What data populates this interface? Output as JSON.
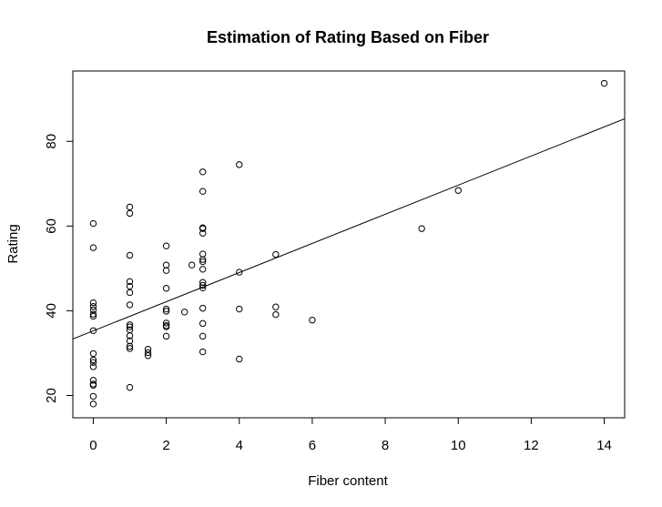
{
  "chart_data": {
    "type": "scatter",
    "title": "Estimation of Rating Based on Fiber",
    "xlabel": "Fiber content",
    "ylabel": "Rating",
    "xlim": [
      -0.56,
      14.56
    ],
    "ylim": [
      14.73,
      96.61
    ],
    "x_ticks": [
      0,
      2,
      4,
      6,
      8,
      10,
      12,
      14
    ],
    "y_ticks": [
      20,
      40,
      60,
      80
    ],
    "grid": false,
    "legend": "none",
    "regression_line": {
      "intercept": 35.26,
      "slope": 3.44
    },
    "points": [
      {
        "x": 0,
        "y": 60.6
      },
      {
        "x": 0,
        "y": 54.9
      },
      {
        "x": 0,
        "y": 41.9
      },
      {
        "x": 0,
        "y": 41.0
      },
      {
        "x": 0,
        "y": 40.2
      },
      {
        "x": 0,
        "y": 39.2
      },
      {
        "x": 0,
        "y": 38.7
      },
      {
        "x": 0,
        "y": 35.3
      },
      {
        "x": 0,
        "y": 29.9
      },
      {
        "x": 0,
        "y": 28.4
      },
      {
        "x": 0,
        "y": 27.8
      },
      {
        "x": 0,
        "y": 26.8
      },
      {
        "x": 0,
        "y": 23.6
      },
      {
        "x": 0,
        "y": 22.7
      },
      {
        "x": 0,
        "y": 22.4
      },
      {
        "x": 0,
        "y": 19.8
      },
      {
        "x": 0,
        "y": 18.0
      },
      {
        "x": 1,
        "y": 64.5
      },
      {
        "x": 1,
        "y": 63.0
      },
      {
        "x": 1,
        "y": 53.1
      },
      {
        "x": 1,
        "y": 46.9
      },
      {
        "x": 1,
        "y": 45.8
      },
      {
        "x": 1,
        "y": 44.3
      },
      {
        "x": 1,
        "y": 41.4
      },
      {
        "x": 1,
        "y": 36.7
      },
      {
        "x": 1,
        "y": 36.2
      },
      {
        "x": 1,
        "y": 35.5
      },
      {
        "x": 1,
        "y": 34.1
      },
      {
        "x": 1,
        "y": 32.9
      },
      {
        "x": 1,
        "y": 31.6
      },
      {
        "x": 1,
        "y": 31.1
      },
      {
        "x": 1,
        "y": 21.9
      },
      {
        "x": 1.5,
        "y": 30.9
      },
      {
        "x": 1.5,
        "y": 30.1
      },
      {
        "x": 1.5,
        "y": 29.4
      },
      {
        "x": 2,
        "y": 55.3
      },
      {
        "x": 2,
        "y": 50.8
      },
      {
        "x": 2,
        "y": 49.5
      },
      {
        "x": 2,
        "y": 45.3
      },
      {
        "x": 2,
        "y": 40.4
      },
      {
        "x": 2,
        "y": 39.9
      },
      {
        "x": 2,
        "y": 37.1
      },
      {
        "x": 2,
        "y": 36.5
      },
      {
        "x": 2,
        "y": 36.2
      },
      {
        "x": 2,
        "y": 34.0
      },
      {
        "x": 2.5,
        "y": 39.7
      },
      {
        "x": 2.7,
        "y": 50.8
      },
      {
        "x": 3,
        "y": 72.8
      },
      {
        "x": 3,
        "y": 68.2
      },
      {
        "x": 3,
        "y": 59.6
      },
      {
        "x": 3,
        "y": 59.4
      },
      {
        "x": 3,
        "y": 58.3
      },
      {
        "x": 3,
        "y": 53.4
      },
      {
        "x": 3,
        "y": 52.1
      },
      {
        "x": 3,
        "y": 51.6
      },
      {
        "x": 3,
        "y": 49.8
      },
      {
        "x": 3,
        "y": 46.7
      },
      {
        "x": 3,
        "y": 46.0
      },
      {
        "x": 3,
        "y": 45.4
      },
      {
        "x": 3,
        "y": 40.6
      },
      {
        "x": 3,
        "y": 37.0
      },
      {
        "x": 3,
        "y": 34.0
      },
      {
        "x": 3,
        "y": 30.3
      },
      {
        "x": 4,
        "y": 74.5
      },
      {
        "x": 4,
        "y": 49.1
      },
      {
        "x": 4,
        "y": 40.4
      },
      {
        "x": 4,
        "y": 28.6
      },
      {
        "x": 5,
        "y": 53.3
      },
      {
        "x": 5,
        "y": 40.9
      },
      {
        "x": 5,
        "y": 39.1
      },
      {
        "x": 6,
        "y": 37.8
      },
      {
        "x": 9,
        "y": 59.4
      },
      {
        "x": 10,
        "y": 68.4
      },
      {
        "x": 14,
        "y": 93.7
      }
    ]
  }
}
